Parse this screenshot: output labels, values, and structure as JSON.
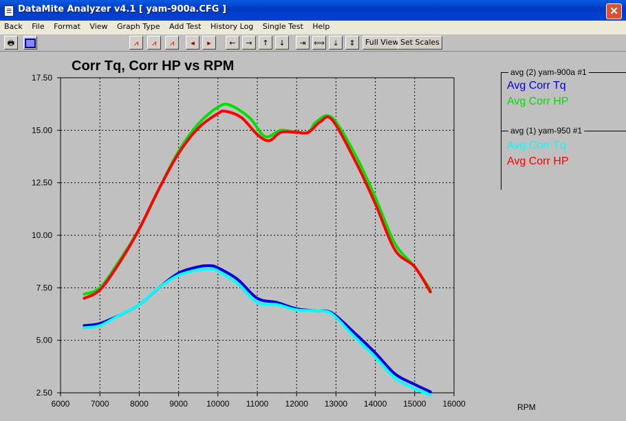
{
  "window": {
    "title": "DataMite Analyzer v4.1  [ yam-900a.CFG ]",
    "close_glyph": "✕"
  },
  "menu": [
    "Back",
    "File",
    "Format",
    "View",
    "Graph Type",
    "Add Test",
    "History Log",
    "Single Test",
    "Help"
  ],
  "toolbar": {
    "full_view": "Full View",
    "set_scales": "Set Scales"
  },
  "legend": [
    {
      "header": "avg (2) yam-900a  #1",
      "items": [
        {
          "label": "Avg Corr Tq",
          "color": "#0000e0"
        },
        {
          "label": "Avg Corr HP",
          "color": "#00e000"
        }
      ]
    },
    {
      "header": "avg (1) yam-950   #1",
      "items": [
        {
          "label": "Avg Corr Tq",
          "color": "#00ffff"
        },
        {
          "label": "Avg Corr HP",
          "color": "#ff0000"
        }
      ]
    }
  ],
  "chart_data": {
    "type": "line",
    "title": "Corr Tq, Corr HP vs RPM",
    "xlabel": "RPM",
    "ylabel": "",
    "xlim": [
      6000,
      16000
    ],
    "ylim": [
      2.5,
      17.5
    ],
    "xticks": [
      6000,
      7000,
      8000,
      9000,
      10000,
      11000,
      12000,
      13000,
      14000,
      15000,
      16000
    ],
    "yticks": [
      "2.50",
      "5.00",
      "7.50",
      "10.00",
      "12.50",
      "15.00",
      "17.50"
    ],
    "grid": true,
    "series": [
      {
        "name": "Avg Corr Tq",
        "test": "avg (2) yam-900a",
        "color": "#0000e0",
        "x": [
          6600,
          7000,
          7500,
          8000,
          8500,
          9000,
          9500,
          9800,
          10000,
          10500,
          11000,
          11500,
          12000,
          12500,
          12900,
          13500,
          14000,
          14500,
          15000,
          15400
        ],
        "y": [
          5.7,
          5.8,
          6.2,
          6.7,
          7.5,
          8.2,
          8.5,
          8.55,
          8.45,
          7.9,
          7.0,
          6.8,
          6.5,
          6.4,
          6.3,
          5.3,
          4.4,
          3.4,
          2.9,
          2.55
        ]
      },
      {
        "name": "Avg Corr HP",
        "test": "avg (2) yam-900a",
        "color": "#00e000",
        "x": [
          6600,
          7000,
          7500,
          8000,
          8500,
          9000,
          9500,
          10000,
          10300,
          10800,
          11200,
          11600,
          12000,
          12300,
          12500,
          12900,
          13500,
          14000,
          14500,
          15000,
          15400
        ],
        "y": [
          7.2,
          7.5,
          8.8,
          10.3,
          12.2,
          14.0,
          15.3,
          16.1,
          16.2,
          15.6,
          14.7,
          15.0,
          14.9,
          14.9,
          15.4,
          15.6,
          13.8,
          11.8,
          9.6,
          8.5,
          7.4
        ]
      },
      {
        "name": "Avg Corr Tq",
        "test": "avg (1) yam-950",
        "color": "#00ffff",
        "x": [
          6600,
          7000,
          7500,
          8000,
          8500,
          9000,
          9500,
          9800,
          10000,
          10500,
          11000,
          11500,
          12000,
          12500,
          12900,
          13500,
          14000,
          14500,
          15000,
          15400
        ],
        "y": [
          5.6,
          5.7,
          6.2,
          6.7,
          7.5,
          8.1,
          8.35,
          8.4,
          8.3,
          7.7,
          6.8,
          6.7,
          6.45,
          6.4,
          6.25,
          5.1,
          4.2,
          3.2,
          2.7,
          2.4
        ]
      },
      {
        "name": "Avg Corr HP",
        "test": "avg (1) yam-950",
        "color": "#ff0000",
        "x": [
          6600,
          7000,
          7500,
          8000,
          8500,
          9000,
          9500,
          10000,
          10200,
          10600,
          11000,
          11300,
          11600,
          12000,
          12300,
          12600,
          12900,
          13500,
          14000,
          14500,
          15000,
          15400
        ],
        "y": [
          7.0,
          7.4,
          8.7,
          10.3,
          12.2,
          13.9,
          15.1,
          15.8,
          15.9,
          15.6,
          14.8,
          14.5,
          14.9,
          14.9,
          14.9,
          15.4,
          15.5,
          13.5,
          11.5,
          9.3,
          8.5,
          7.3
        ]
      }
    ]
  }
}
